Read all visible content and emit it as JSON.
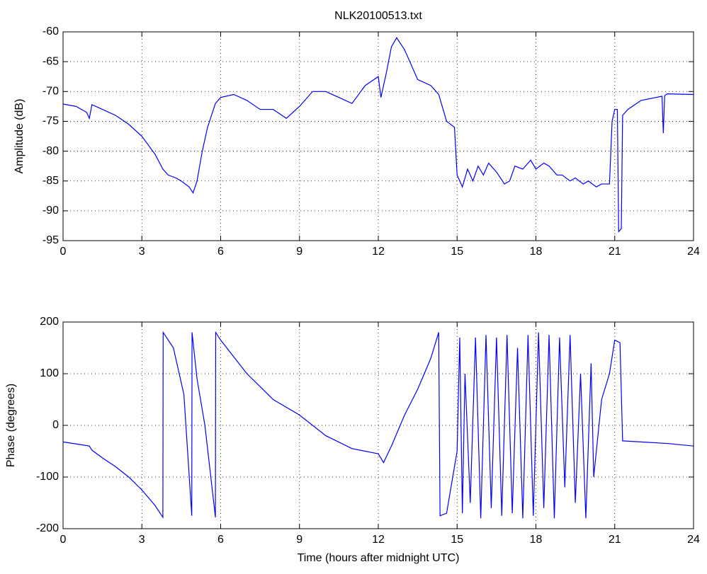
{
  "chart_data": [
    {
      "type": "line",
      "title": "NLK20100513.txt",
      "ylabel": "Amplitude (dB)",
      "color": "#0000ff",
      "grid": true,
      "xlim": [
        0,
        24
      ],
      "xticks": [
        0,
        3,
        6,
        9,
        12,
        15,
        18,
        21,
        24
      ],
      "ylim": [
        -95,
        -60
      ],
      "yticks": [
        -95,
        -90,
        -85,
        -80,
        -75,
        -70,
        -65,
        -60
      ],
      "x": [
        0,
        0.5,
        0.9,
        1.0,
        1.1,
        1.5,
        2,
        2.5,
        3,
        3.5,
        3.8,
        4,
        4.3,
        4.5,
        4.8,
        4.95,
        5.1,
        5.3,
        5.5,
        5.8,
        6,
        6.5,
        7,
        7.5,
        8,
        8.5,
        9,
        9.5,
        10,
        10.5,
        11,
        11.5,
        12,
        12.1,
        12.3,
        12.5,
        12.7,
        13,
        13.5,
        14,
        14.3,
        14.6,
        14.9,
        15.0,
        15.2,
        15.4,
        15.6,
        15.8,
        16,
        16.2,
        16.5,
        16.8,
        17,
        17.2,
        17.5,
        17.8,
        18,
        18.3,
        18.5,
        18.8,
        19,
        19.3,
        19.5,
        19.8,
        20,
        20.3,
        20.5,
        20.8,
        20.9,
        21,
        21.1,
        21.15,
        21.25,
        21.3,
        21.5,
        22,
        22.8,
        22.85,
        22.9,
        23,
        24
      ],
      "values": [
        -72.1,
        -72.5,
        -73.5,
        -74.5,
        -72.2,
        -73,
        -74,
        -75.5,
        -77.5,
        -80.5,
        -83,
        -84,
        -84.5,
        -85,
        -86,
        -87,
        -85,
        -80,
        -76,
        -72,
        -71,
        -70.5,
        -71.5,
        -73,
        -73,
        -74.5,
        -72.5,
        -70,
        -70,
        -71,
        -72,
        -69,
        -67.5,
        -71,
        -67,
        -62.5,
        -61,
        -63,
        -68,
        -69,
        -70.5,
        -75,
        -76,
        -84,
        -86,
        -83,
        -85,
        -82.5,
        -84,
        -82,
        -83.5,
        -85.5,
        -85,
        -82.5,
        -83,
        -81.5,
        -83,
        -82,
        -82.5,
        -84,
        -84,
        -85,
        -84.5,
        -85.5,
        -85,
        -86,
        -85.5,
        -85.5,
        -75,
        -73,
        -73,
        -93.5,
        -93,
        -74,
        -73,
        -71.5,
        -70.8,
        -77,
        -70.7,
        -70.4,
        -70.5
      ]
    },
    {
      "type": "line",
      "ylabel": "Phase (degrees)",
      "xlabel": "Time (hours after midnight UTC)",
      "color": "#0000ff",
      "grid": true,
      "xlim": [
        0,
        24
      ],
      "xticks": [
        0,
        3,
        6,
        9,
        12,
        15,
        18,
        21,
        24
      ],
      "ylim": [
        -200,
        200
      ],
      "yticks": [
        -200,
        -100,
        0,
        100,
        200
      ],
      "x": [
        0,
        0.5,
        1,
        1.1,
        1.5,
        2,
        2.5,
        3,
        3.5,
        3.8,
        3.81,
        4.2,
        4.6,
        4.9,
        4.91,
        5.1,
        5.4,
        5.8,
        5.81,
        6,
        7,
        8,
        9,
        10,
        11,
        12,
        12.2,
        12.5,
        13,
        13.5,
        14,
        14.3,
        14.35,
        14.6,
        14.9,
        15,
        15.1,
        15.2,
        15.3,
        15.5,
        15.7,
        15.9,
        16.1,
        16.3,
        16.5,
        16.7,
        16.9,
        17.1,
        17.3,
        17.5,
        17.7,
        17.9,
        18.1,
        18.3,
        18.5,
        18.7,
        18.9,
        19.1,
        19.3,
        19.5,
        19.7,
        19.9,
        20.1,
        20.2,
        20.5,
        20.8,
        21,
        21.2,
        21.3,
        22,
        23,
        24
      ],
      "values": [
        -32,
        -36,
        -40,
        -48,
        -63,
        -80,
        -100,
        -125,
        -155,
        -178,
        180,
        150,
        60,
        -175,
        180,
        90,
        0,
        -178,
        180,
        165,
        100,
        50,
        20,
        -20,
        -45,
        -55,
        -72,
        -40,
        20,
        70,
        130,
        180,
        -175,
        -170,
        -80,
        -50,
        170,
        -170,
        100,
        -150,
        170,
        -180,
        175,
        -160,
        170,
        -175,
        175,
        -170,
        150,
        -180,
        175,
        -175,
        180,
        -160,
        175,
        -180,
        170,
        -120,
        175,
        -150,
        100,
        -180,
        120,
        -100,
        50,
        100,
        165,
        160,
        -30,
        -32,
        -35,
        -40
      ]
    }
  ]
}
